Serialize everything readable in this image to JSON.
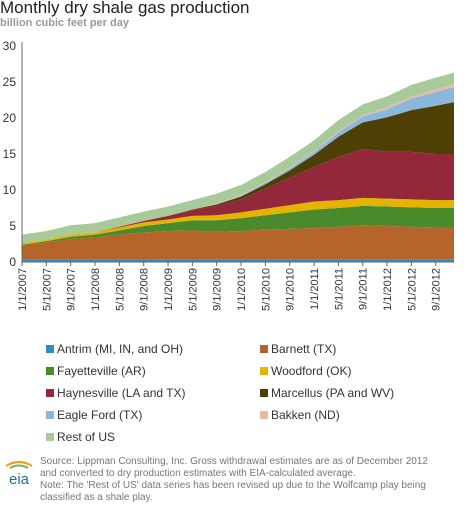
{
  "header": {
    "title": "Monthly dry shale gas production",
    "subtitle": "billion cubic feet per day"
  },
  "chart_data": {
    "type": "area",
    "stacked": true,
    "title": "Monthly dry shale gas production",
    "ylabel": "billion cubic feet per day",
    "xlabel": "",
    "ylim": [
      0,
      30
    ],
    "yticks": [
      0,
      5,
      10,
      15,
      20,
      25,
      30
    ],
    "grid": false,
    "legend_position": "bottom",
    "x_tick_labels": [
      "1/1/2007",
      "5/1/2007",
      "9/1/2007",
      "1/1/2008",
      "5/1/2008",
      "9/1/2008",
      "1/1/2009",
      "5/1/2009",
      "9/1/2009",
      "1/1/2010",
      "5/1/2010",
      "9/1/2010",
      "1/1/2011",
      "5/1/2011",
      "9/1/2011",
      "1/1/2012",
      "5/1/2012",
      "9/1/2012"
    ],
    "x": [
      "2007-01",
      "2007-05",
      "2007-09",
      "2008-01",
      "2008-05",
      "2008-09",
      "2009-01",
      "2009-05",
      "2009-09",
      "2010-01",
      "2010-05",
      "2010-09",
      "2011-01",
      "2011-05",
      "2011-09",
      "2012-01",
      "2012-05",
      "2012-09",
      "2012-12"
    ],
    "series": [
      {
        "name": "Antrim (MI, IN, and OH)",
        "color": "#2a8fc1",
        "values": [
          0.3,
          0.3,
          0.3,
          0.3,
          0.3,
          0.3,
          0.3,
          0.3,
          0.3,
          0.3,
          0.3,
          0.3,
          0.3,
          0.3,
          0.3,
          0.3,
          0.3,
          0.3,
          0.3
        ]
      },
      {
        "name": "Barnett (TX)",
        "color": "#b5652a",
        "values": [
          2.0,
          2.4,
          2.9,
          3.1,
          3.5,
          3.8,
          4.0,
          4.1,
          3.9,
          4.0,
          4.2,
          4.3,
          4.4,
          4.6,
          4.8,
          4.7,
          4.6,
          4.5,
          4.5
        ]
      },
      {
        "name": "Fayetteville (AR)",
        "color": "#4a8a2c",
        "values": [
          0.1,
          0.2,
          0.3,
          0.4,
          0.6,
          0.9,
          1.1,
          1.4,
          1.6,
          1.8,
          2.0,
          2.3,
          2.6,
          2.6,
          2.7,
          2.7,
          2.7,
          2.7,
          2.7
        ]
      },
      {
        "name": "Woodford (OK)",
        "color": "#e4b400",
        "values": [
          0.2,
          0.2,
          0.3,
          0.3,
          0.4,
          0.5,
          0.5,
          0.6,
          0.7,
          0.8,
          0.9,
          1.0,
          1.1,
          1.1,
          1.1,
          1.1,
          1.1,
          1.1,
          1.1
        ]
      },
      {
        "name": "Haynesville (LA and TX)",
        "color": "#93283a",
        "values": [
          0.0,
          0.0,
          0.0,
          0.0,
          0.1,
          0.2,
          0.5,
          0.8,
          1.3,
          1.8,
          2.8,
          3.8,
          4.8,
          6.0,
          6.8,
          6.5,
          6.6,
          6.4,
          6.4
        ]
      },
      {
        "name": "Marcellus (PA and WV)",
        "color": "#4e3f05",
        "values": [
          0.0,
          0.0,
          0.0,
          0.0,
          0.0,
          0.0,
          0.0,
          0.1,
          0.2,
          0.4,
          0.6,
          1.0,
          1.7,
          2.8,
          3.7,
          4.8,
          5.8,
          6.7,
          7.2
        ]
      },
      {
        "name": "Eagle Ford (TX)",
        "color": "#8ab8dc",
        "values": [
          0.0,
          0.0,
          0.0,
          0.0,
          0.0,
          0.0,
          0.0,
          0.0,
          0.0,
          0.1,
          0.2,
          0.3,
          0.4,
          0.6,
          0.8,
          1.1,
          1.6,
          1.9,
          2.1
        ]
      },
      {
        "name": "Bakken (ND)",
        "color": "#e6b9a6",
        "values": [
          0.0,
          0.0,
          0.0,
          0.0,
          0.0,
          0.0,
          0.0,
          0.0,
          0.1,
          0.1,
          0.1,
          0.1,
          0.1,
          0.2,
          0.2,
          0.3,
          0.3,
          0.4,
          0.4
        ]
      },
      {
        "name": "Rest of US",
        "color": "#a8c99a",
        "values": [
          1.2,
          1.2,
          1.3,
          1.3,
          1.3,
          1.3,
          1.3,
          1.3,
          1.4,
          1.4,
          1.4,
          1.5,
          1.5,
          1.5,
          1.5,
          1.5,
          1.6,
          1.6,
          1.6
        ]
      }
    ]
  },
  "footer": {
    "logo_text": "eia",
    "source_lines": [
      "Source: Lippman Consulting, Inc. Gross withdrawal estimates are as of December 2012",
      "and converted to dry production estimates with EIA-calculated average.",
      "Note: The 'Rest of US' data series has been revised up due to the Wolfcamp play being",
      "classified as a shale play."
    ]
  }
}
